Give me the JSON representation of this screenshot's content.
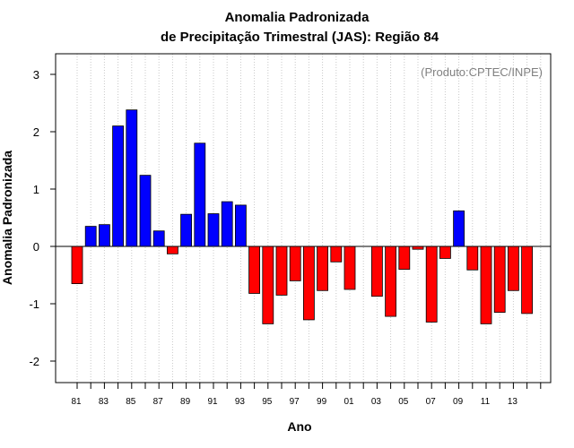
{
  "chart_data": {
    "type": "bar",
    "title_line1": "Anomalia Padronizada",
    "title_line2": "de Precipitação Trimestral (JAS): Região 84",
    "xlabel": "Ano",
    "ylabel": "Anomalia Padronizada",
    "annotation": "(Produto:CPTEC/INPE)",
    "ylim": [
      -2.35,
      3.35
    ],
    "yticks": [
      "-2",
      "-1",
      "0",
      "1",
      "2",
      "3"
    ],
    "ytick_values": [
      -2,
      -1,
      0,
      1,
      2,
      3
    ],
    "xtick_labels": [
      "81",
      "83",
      "85",
      "87",
      "89",
      "91",
      "93",
      "95",
      "97",
      "99",
      "01",
      "03",
      "05",
      "07",
      "09",
      "11",
      "13"
    ],
    "categories": [
      "81",
      "82",
      "83",
      "84",
      "85",
      "86",
      "87",
      "88",
      "89",
      "90",
      "91",
      "92",
      "93",
      "94",
      "95",
      "96",
      "97",
      "98",
      "99",
      "00",
      "01",
      "02",
      "03",
      "04",
      "05",
      "06",
      "07",
      "08",
      "09",
      "10",
      "11",
      "12",
      "13",
      "14"
    ],
    "values": [
      -0.65,
      0.35,
      0.38,
      2.1,
      2.38,
      1.24,
      0.27,
      -0.13,
      0.56,
      1.8,
      0.57,
      0.78,
      0.72,
      -0.82,
      -1.35,
      -0.85,
      -0.6,
      -1.28,
      -0.77,
      -0.27,
      -0.75,
      0,
      -0.87,
      -1.22,
      -0.4,
      -0.05,
      -1.32,
      -0.21,
      0.62,
      -0.41,
      -1.35,
      -1.15,
      -0.77,
      -1.17
    ],
    "grid": "vertical dotted",
    "colors": {
      "positive": "#0000ff",
      "negative": "#ff0000",
      "grid": "#c8c8c8",
      "frame": "#000000"
    }
  }
}
